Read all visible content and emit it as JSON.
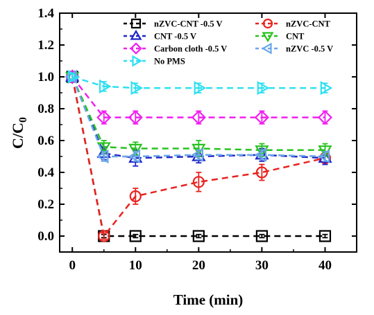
{
  "chart_data": {
    "type": "line",
    "xlabel": "Time (min)",
    "ylabel_main": "C/C",
    "ylabel_sub": "0",
    "xlim": [
      -2,
      45
    ],
    "ylim": [
      -0.1,
      1.4
    ],
    "xticks": [
      0,
      10,
      20,
      30,
      40
    ],
    "yticks": [
      0.0,
      0.2,
      0.4,
      0.6,
      0.8,
      1.0,
      1.2,
      1.4
    ],
    "ytick_labels": [
      "0.0",
      "0.2",
      "0.4",
      "0.6",
      "0.8",
      "1.0",
      "1.2",
      "1.4"
    ],
    "x": [
      0,
      5,
      10,
      20,
      30,
      40
    ],
    "legend_position": "top",
    "series": [
      {
        "name": "nZVC-CNT -0.5 V",
        "marker": "square",
        "color": "#000000",
        "values": [
          1.0,
          0.0,
          0.0,
          0.0,
          0.0,
          0.0
        ],
        "errors": [
          0.02,
          0.01,
          0.01,
          0.01,
          0.01,
          0.01
        ]
      },
      {
        "name": "nZVC-CNT",
        "marker": "circle",
        "color": "#e8231f",
        "values": [
          1.0,
          0.0,
          0.25,
          0.34,
          0.4,
          0.49
        ],
        "errors": [
          0.02,
          0.02,
          0.05,
          0.06,
          0.05,
          0.04
        ]
      },
      {
        "name": "CNT -0.5 V",
        "marker": "triangle-up",
        "color": "#1f24c8",
        "values": [
          1.0,
          0.52,
          0.49,
          0.5,
          0.51,
          0.49
        ],
        "errors": [
          0.02,
          0.04,
          0.05,
          0.04,
          0.04,
          0.04
        ]
      },
      {
        "name": "CNT",
        "marker": "triangle-down",
        "color": "#27c21f",
        "values": [
          1.0,
          0.56,
          0.55,
          0.55,
          0.54,
          0.54
        ],
        "errors": [
          0.02,
          0.04,
          0.04,
          0.05,
          0.04,
          0.04
        ]
      },
      {
        "name": "Carbon cloth -0.5 V",
        "marker": "diamond",
        "color": "#f01ff0",
        "values": [
          1.0,
          0.745,
          0.745,
          0.745,
          0.745,
          0.745
        ],
        "errors": [
          0.02,
          0.04,
          0.04,
          0.04,
          0.04,
          0.04
        ]
      },
      {
        "name": "nZVC -0.5 V",
        "marker": "triangle-left",
        "color": "#6aa6e8",
        "values": [
          1.0,
          0.5,
          0.5,
          0.51,
          0.51,
          0.5
        ],
        "errors": [
          0.02,
          0.03,
          0.03,
          0.03,
          0.03,
          0.03
        ]
      },
      {
        "name": "No PMS",
        "marker": "triangle-right",
        "color": "#2ee0f0",
        "values": [
          1.0,
          0.94,
          0.93,
          0.93,
          0.93,
          0.93
        ],
        "errors": [
          0.02,
          0.03,
          0.03,
          0.03,
          0.03,
          0.03
        ]
      }
    ]
  }
}
